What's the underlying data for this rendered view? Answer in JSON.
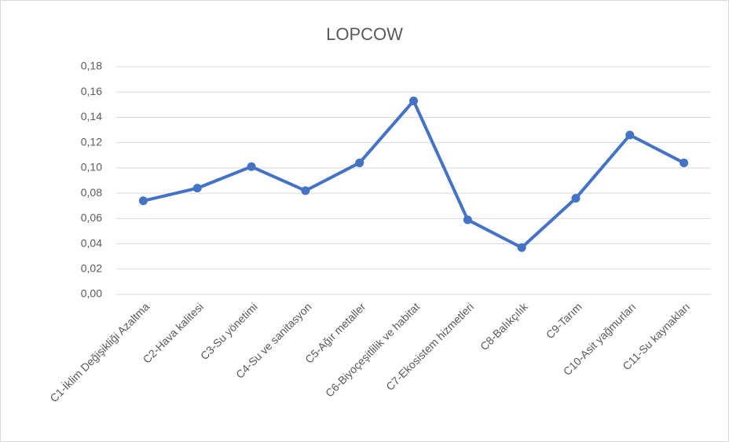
{
  "chart_data": {
    "type": "line",
    "title": "LOPCOW",
    "categories": [
      "C1-İklim Değişikliği Azaltma",
      "C2-Hava kalitesi",
      "C3-Su yönetimi",
      "C4-Su ve sanitasyon",
      "C5-Ağır metaller",
      "C6-Biyoçeşitlilik ve habitat",
      "C7-Ekosistem hizmetleri",
      "C8-Balıkçılık",
      "C9-Tarım",
      "C10-Asit yağmurları",
      "C11-Su kaynakları"
    ],
    "series": [
      {
        "name": "LOPCOW",
        "color": "#4472c4",
        "values": [
          0.074,
          0.084,
          0.101,
          0.082,
          0.104,
          0.153,
          0.059,
          0.037,
          0.076,
          0.126,
          0.104
        ]
      }
    ],
    "ylim": [
      0,
      0.18
    ],
    "yticks": [
      {
        "value": 0,
        "label": "0,00"
      },
      {
        "value": 0.02,
        "label": "0,02"
      },
      {
        "value": 0.04,
        "label": "0,04"
      },
      {
        "value": 0.06,
        "label": "0,06"
      },
      {
        "value": 0.08,
        "label": "0,08"
      },
      {
        "value": 0.1,
        "label": "0,10"
      },
      {
        "value": 0.12,
        "label": "0,12"
      },
      {
        "value": 0.14,
        "label": "0,14"
      },
      {
        "value": 0.16,
        "label": "0,16"
      },
      {
        "value": 0.18,
        "label": "0,18"
      }
    ],
    "grid": true
  }
}
